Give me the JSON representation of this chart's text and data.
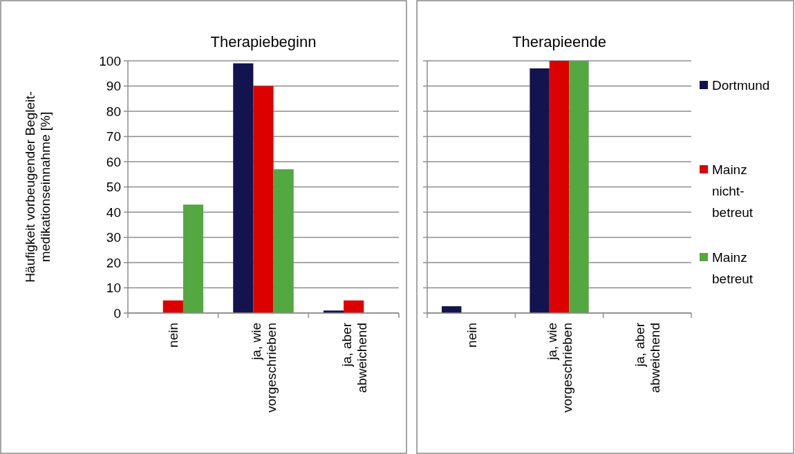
{
  "chart_data": [
    {
      "type": "bar",
      "title": "Therapiebeginn",
      "ylabel": "Häufigkeit vorbeugender Begleit-medikationseinnahme [%]",
      "categories": [
        "nein",
        "ja, wie vorgeschrieben",
        "ja, aber abweichend"
      ],
      "series": [
        {
          "color": "#13134f",
          "values": [
            0,
            99,
            1
          ]
        },
        {
          "color": "#dd0000",
          "values": [
            5,
            90,
            5
          ]
        },
        {
          "color": "#54a842",
          "values": [
            43,
            57,
            0
          ]
        }
      ],
      "ylim": [
        0,
        100
      ],
      "yticks": [
        0,
        10,
        20,
        30,
        40,
        50,
        60,
        70,
        80,
        90,
        100
      ],
      "grid": "y",
      "legend": false
    },
    {
      "type": "bar",
      "title": "Therapieende",
      "categories": [
        "nein",
        "ja, wie vorgeschrieben",
        "ja, aber abweichend"
      ],
      "series": [
        {
          "name": "Dortmund",
          "color": "#13134f",
          "values": [
            2.7,
            97,
            0
          ]
        },
        {
          "name": "Mainz nicht-betreut",
          "color": "#dd0000",
          "values": [
            0,
            100,
            0
          ]
        },
        {
          "name": "Mainz betreut",
          "color": "#54a842",
          "values": [
            0,
            100,
            0
          ]
        }
      ],
      "ylim": [
        0,
        100
      ],
      "yticks": [
        0,
        10,
        20,
        30,
        40,
        50,
        60,
        70,
        80,
        90,
        100
      ],
      "grid": "y",
      "legend": "right",
      "tick_labels": "x"
    }
  ]
}
